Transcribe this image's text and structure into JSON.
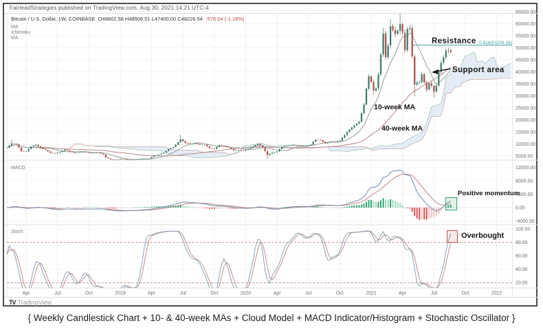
{
  "header": {
    "published": "FairleadStrategies published on TradingView.com, Aug 30, 2021 14:21 UTC-4"
  },
  "legend": {
    "symbol": "Bitcoin / U.S. Dollar, 1W, COINBASE",
    "ohlc": "O48802.58  H48906.51  L47400.00  C48226.54",
    "change": "-576.04 (-1.18%)",
    "indicators": [
      "MA",
      "Ichimoku",
      "MA"
    ]
  },
  "panels": {
    "macd_label": "MACD",
    "stoch_label": "Stoch"
  },
  "annotations": {
    "resistance": {
      "label": "Resistance"
    },
    "fib_level": {
      "label": "0.618(51109.18)",
      "value": 51109.18
    },
    "support": {
      "label": "Support area"
    },
    "ma10": {
      "label": "10-week MA"
    },
    "ma40": {
      "label": "40-week MA"
    },
    "momentum": {
      "label": "Positive momentum"
    },
    "overbought": {
      "label": "Overbought"
    }
  },
  "footer": {
    "tv_mark": "TV",
    "logo": "TradingView"
  },
  "caption": "{ Weekly Candlestick Chart + 10- & 40-week MAs + Cloud Model + MACD Indicator/Histogram + Stochastic Oscillator }",
  "colors": {
    "candle_up": "#3e7d6c",
    "candle_down": "#a8544e",
    "ma10": "#9aa79e",
    "ma40": "#bb8f8f",
    "cloud_fill": "#d3e2f1",
    "cloud_edge_a": "#9fbcae",
    "cloud_edge_b": "#c9a3a3",
    "macd_line": "#7e94ad",
    "signal_line": "#c09090",
    "hist_up_strong": "#2f9e74",
    "hist_up_weak": "#9ed8bf",
    "hist_down_strong": "#dd5050",
    "hist_down_weak": "#f2c2c2",
    "stoch_k": "#8aa0b4",
    "stoch_d": "#bb8f8f",
    "stoch_band": "#cc8484",
    "resistance": "#3c9ea0",
    "grid": "#f0f0f0",
    "axis_text": "#6a6a6a",
    "separator": "#dcdcdc"
  },
  "chart_data": [
    {
      "type": "candlestick",
      "title": "Bitcoin / U.S. Dollar, 1W, COINBASE",
      "interval": "1W",
      "last_bar": {
        "open": 48802.58,
        "high": 48906.51,
        "low": 47400.0,
        "close": 48226.54,
        "change": -576.04,
        "change_pct": -1.18
      },
      "overlays": [
        {
          "name": "10-week MA",
          "period": 10
        },
        {
          "name": "40-week MA",
          "period": 40
        },
        {
          "name": "Ichimoku Cloud",
          "projects_forward_weeks": 26
        }
      ],
      "resistance": {
        "label": "0.618(51109.18)",
        "value": 51109.18
      },
      "ylim": [
        2500,
        66500
      ],
      "y_ticks": [
        65000,
        60000,
        55000,
        50000,
        45000,
        40000,
        35000,
        30000,
        25000,
        20000,
        15000,
        10000,
        5000
      ],
      "x_ticks": [
        {
          "t": 8,
          "label": "Apr"
        },
        {
          "t": 21,
          "label": "Jul"
        },
        {
          "t": 34,
          "label": "Oct"
        },
        {
          "t": 47,
          "label": "2019"
        },
        {
          "t": 60,
          "label": "Apr"
        },
        {
          "t": 73,
          "label": "Jul"
        },
        {
          "t": 86,
          "label": "Oct"
        },
        {
          "t": 99,
          "label": "2020"
        },
        {
          "t": 112,
          "label": "Apr"
        },
        {
          "t": 125,
          "label": "Jul"
        },
        {
          "t": 138,
          "label": "Oct"
        },
        {
          "t": 151,
          "label": "2021"
        },
        {
          "t": 164,
          "label": "Apr"
        },
        {
          "t": 177,
          "label": "Jul"
        },
        {
          "t": 190,
          "label": "Oct"
        },
        {
          "t": 203,
          "label": "2022"
        }
      ],
      "weeks": 184,
      "close_anchors": [
        [
          0,
          8500
        ],
        [
          2,
          10200
        ],
        [
          4,
          9900
        ],
        [
          6,
          7000
        ],
        [
          8,
          6900
        ],
        [
          10,
          8900
        ],
        [
          12,
          9700
        ],
        [
          14,
          8400
        ],
        [
          16,
          7500
        ],
        [
          18,
          6300
        ],
        [
          20,
          6100
        ],
        [
          22,
          6700
        ],
        [
          24,
          7700
        ],
        [
          26,
          7000
        ],
        [
          28,
          6300
        ],
        [
          30,
          6500
        ],
        [
          32,
          6700
        ],
        [
          34,
          6300
        ],
        [
          36,
          6400
        ],
        [
          38,
          6400
        ],
        [
          40,
          5600
        ],
        [
          41,
          4400
        ],
        [
          43,
          3600
        ],
        [
          45,
          3300
        ],
        [
          47,
          3800
        ],
        [
          49,
          3600
        ],
        [
          51,
          3500
        ],
        [
          53,
          3600
        ],
        [
          56,
          3900
        ],
        [
          59,
          4000
        ],
        [
          61,
          5200
        ],
        [
          63,
          5600
        ],
        [
          65,
          6400
        ],
        [
          67,
          7900
        ],
        [
          69,
          8700
        ],
        [
          71,
          10700
        ],
        [
          72,
          11900
        ],
        [
          74,
          10500
        ],
        [
          76,
          9900
        ],
        [
          78,
          10300
        ],
        [
          80,
          9700
        ],
        [
          82,
          9700
        ],
        [
          84,
          8300
        ],
        [
          86,
          8000
        ],
        [
          88,
          9500
        ],
        [
          90,
          9200
        ],
        [
          92,
          8500
        ],
        [
          94,
          7300
        ],
        [
          96,
          7500
        ],
        [
          98,
          7200
        ],
        [
          100,
          8000
        ],
        [
          102,
          8900
        ],
        [
          104,
          10100
        ],
        [
          106,
          8600
        ],
        [
          108,
          5400
        ],
        [
          110,
          6400
        ],
        [
          112,
          6900
        ],
        [
          114,
          8800
        ],
        [
          116,
          9300
        ],
        [
          118,
          9500
        ],
        [
          120,
          9400
        ],
        [
          122,
          9100
        ],
        [
          124,
          9200
        ],
        [
          126,
          9700
        ],
        [
          127,
          11000
        ],
        [
          128,
          11800
        ],
        [
          130,
          11600
        ],
        [
          132,
          10300
        ],
        [
          134,
          10900
        ],
        [
          136,
          10700
        ],
        [
          138,
          11400
        ],
        [
          140,
          13800
        ],
        [
          142,
          16000
        ],
        [
          144,
          17700
        ],
        [
          146,
          19200
        ],
        [
          148,
          26400
        ],
        [
          149,
          33000
        ],
        [
          150,
          38100
        ],
        [
          151,
          35800
        ],
        [
          152,
          32200
        ],
        [
          153,
          33100
        ],
        [
          154,
          38900
        ],
        [
          155,
          47200
        ],
        [
          156,
          55900
        ],
        [
          157,
          46100
        ],
        [
          158,
          50900
        ],
        [
          159,
          59000
        ],
        [
          160,
          57400
        ],
        [
          161,
          55800
        ],
        [
          162,
          57100
        ],
        [
          163,
          59800
        ],
        [
          164,
          56200
        ],
        [
          165,
          49000
        ],
        [
          166,
          57800
        ],
        [
          167,
          58200
        ],
        [
          168,
          46400
        ],
        [
          169,
          34700
        ],
        [
          170,
          35500
        ],
        [
          171,
          35800
        ],
        [
          172,
          39000
        ],
        [
          173,
          35600
        ],
        [
          174,
          32600
        ],
        [
          175,
          35300
        ],
        [
          176,
          34200
        ],
        [
          177,
          31800
        ],
        [
          178,
          34300
        ],
        [
          179,
          39900
        ],
        [
          180,
          43800
        ],
        [
          181,
          46000
        ],
        [
          182,
          48800
        ],
        [
          183,
          48900
        ],
        [
          184,
          48226
        ]
      ],
      "extremes": {
        "highs": [
          [
            2,
            11800
          ],
          [
            72,
            13880
          ],
          [
            104,
            10500
          ],
          [
            156,
            58350
          ],
          [
            159,
            61800
          ],
          [
            163,
            64899
          ],
          [
            167,
            59500
          ]
        ],
        "lows": [
          [
            45,
            3150
          ],
          [
            108,
            3850
          ],
          [
            152,
            30500
          ],
          [
            169,
            30000
          ],
          [
            174,
            31700
          ],
          [
            177,
            29300
          ]
        ]
      }
    },
    {
      "type": "macd",
      "label": "MACD",
      "params": "EMA12 - EMA26, signal EMA9, weekly closes",
      "peak_value_approx": 11500,
      "y_ticks": [
        12000,
        8000,
        4000,
        0,
        -4000
      ]
    },
    {
      "type": "stochastic",
      "label": "Stoch",
      "params": "%K 14,3 smoothed, %D 3",
      "bands": [
        80,
        20
      ],
      "y_ticks": [
        100,
        80,
        60,
        40,
        20
      ]
    }
  ]
}
